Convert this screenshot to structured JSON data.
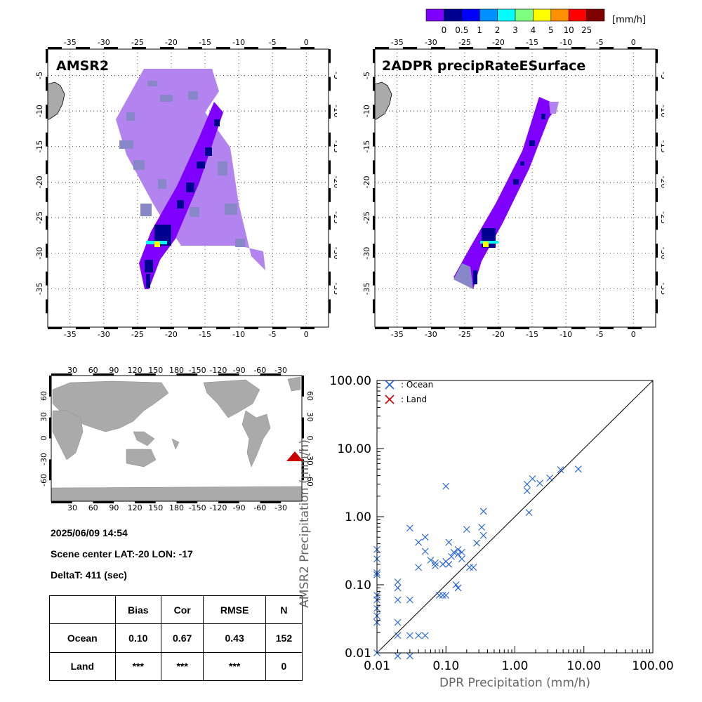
{
  "colorbar": {
    "unit": "[mm/h]",
    "labels": [
      "0",
      "0.5",
      "1",
      "2",
      "3",
      "4",
      "5",
      "10",
      "25"
    ],
    "colors": [
      "#8000ff",
      "#000090",
      "#0000ff",
      "#0090ff",
      "#00ffff",
      "#7fff7f",
      "#ffff00",
      "#ff9000",
      "#ff0000",
      "#800000"
    ]
  },
  "map_amsr2": {
    "title": "AMSR2",
    "lon_ticks": [
      "-35",
      "-30",
      "-25",
      "-20",
      "-15",
      "-10",
      "-5",
      "0"
    ],
    "lat_ticks": [
      "-5",
      "-10",
      "-15",
      "-20",
      "-25",
      "-30",
      "-35"
    ]
  },
  "map_dpr": {
    "title": "2ADPR precipRateESurface",
    "lon_ticks": [
      "-35",
      "-30",
      "-25",
      "-20",
      "-15",
      "-10",
      "-5",
      "0"
    ],
    "lat_ticks": [
      "-5",
      "-10",
      "-15",
      "-20",
      "-25",
      "-30",
      "-35"
    ]
  },
  "world_map": {
    "lon_ticks": [
      "30",
      "60",
      "90",
      "120",
      "150",
      "180",
      "-150",
      "-120",
      "-90",
      "-60",
      "-30"
    ],
    "lat_ticks": [
      "60",
      "30",
      "0",
      "-30",
      "-60"
    ],
    "marker_color": "#cc0000"
  },
  "info": {
    "datetime": "2025/06/09 14:54",
    "scene_center": "Scene center LAT:-20   LON: -17",
    "delta_t": "DeltaT:  411 (sec)"
  },
  "stats_table": {
    "headers": [
      "",
      "Bias",
      "Cor",
      "RMSE",
      "N"
    ],
    "rows": [
      [
        "Ocean",
        "0.10",
        "0.67",
        "0.43",
        "152"
      ],
      [
        "Land",
        "***",
        "***",
        "***",
        "0"
      ]
    ]
  },
  "chart_data": {
    "type": "scatter",
    "xlabel": "DPR Precipitation (mm/h)",
    "ylabel": "AMSR2 Precipitation (mm/h)",
    "xscale": "log",
    "yscale": "log",
    "xlim": [
      0.01,
      100
    ],
    "ylim": [
      0.01,
      100
    ],
    "x_tick_labels": [
      "0.01",
      "0.10",
      "1.00",
      "10.00",
      "100.00"
    ],
    "y_tick_labels": [
      "0.01",
      "0.10",
      "1.00",
      "10.00",
      "100.00"
    ],
    "legend_position": "top-left",
    "series": [
      {
        "name": ": Ocean",
        "color": "#1f5fdc",
        "points": [
          [
            0.01,
            0.33
          ],
          [
            0.01,
            0.24
          ],
          [
            0.01,
            0.15
          ],
          [
            0.01,
            0.14
          ],
          [
            0.01,
            0.07
          ],
          [
            0.01,
            0.06
          ],
          [
            0.01,
            0.045
          ],
          [
            0.01,
            0.035
          ],
          [
            0.01,
            0.028
          ],
          [
            0.01,
            0.01
          ],
          [
            0.02,
            0.11
          ],
          [
            0.02,
            0.09
          ],
          [
            0.02,
            0.06
          ],
          [
            0.02,
            0.028
          ],
          [
            0.02,
            0.018
          ],
          [
            0.02,
            0.009
          ],
          [
            0.03,
            0.68
          ],
          [
            0.03,
            0.06
          ],
          [
            0.03,
            0.018
          ],
          [
            0.03,
            0.009
          ],
          [
            0.04,
            0.42
          ],
          [
            0.04,
            0.18
          ],
          [
            0.04,
            0.018
          ],
          [
            0.05,
            0.5
          ],
          [
            0.05,
            0.31
          ],
          [
            0.05,
            0.018
          ],
          [
            0.06,
            0.23
          ],
          [
            0.07,
            0.21
          ],
          [
            0.07,
            0.19
          ],
          [
            0.08,
            0.07
          ],
          [
            0.09,
            0.07
          ],
          [
            0.09,
            0.2
          ],
          [
            0.1,
            2.8
          ],
          [
            0.1,
            0.22
          ],
          [
            0.1,
            0.07
          ],
          [
            0.11,
            0.42
          ],
          [
            0.11,
            0.2
          ],
          [
            0.12,
            0.26
          ],
          [
            0.13,
            0.3
          ],
          [
            0.14,
            0.1
          ],
          [
            0.15,
            0.09
          ],
          [
            0.15,
            0.28
          ],
          [
            0.15,
            0.33
          ],
          [
            0.17,
            0.3
          ],
          [
            0.17,
            0.24
          ],
          [
            0.2,
            0.65
          ],
          [
            0.22,
            0.18
          ],
          [
            0.25,
            0.18
          ],
          [
            0.28,
            0.41
          ],
          [
            0.33,
            0.7
          ],
          [
            0.35,
            0.53
          ],
          [
            0.35,
            1.2
          ],
          [
            1.5,
            2.4
          ],
          [
            1.5,
            3.0
          ],
          [
            1.6,
            1.15
          ],
          [
            1.8,
            3.6
          ],
          [
            2.3,
            3.1
          ],
          [
            3.2,
            3.7
          ],
          [
            4.6,
            4.9
          ],
          [
            8.3,
            5.0
          ]
        ]
      },
      {
        "name": ": Land",
        "color": "#cc0000",
        "points": []
      }
    ]
  }
}
